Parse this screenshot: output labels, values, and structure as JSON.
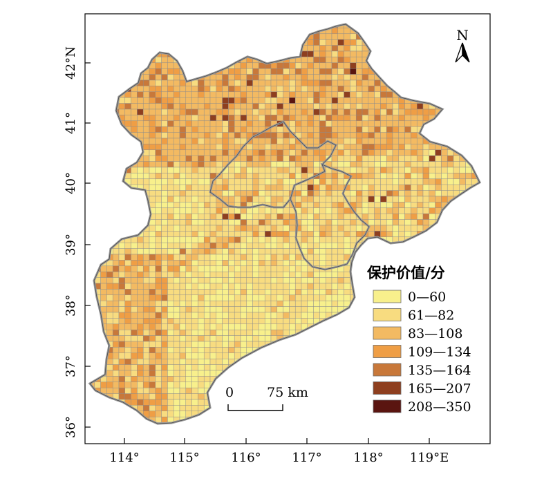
{
  "map": {
    "north_label": "N",
    "latitude_ticks": [
      "42°N",
      "41°",
      "40°",
      "39°",
      "38°",
      "37°",
      "36°"
    ],
    "longitude_ticks": [
      "114°",
      "115°",
      "116°",
      "117°",
      "118°",
      "119°E"
    ],
    "scale_bar": {
      "start_label": "0",
      "end_label": "75 km"
    },
    "legend": {
      "title": "保护价值/分",
      "classes": [
        {
          "label": "0—60",
          "color": "#f8f08c"
        },
        {
          "label": "61—82",
          "color": "#f8dc80"
        },
        {
          "label": "83—108",
          "color": "#f3ba62"
        },
        {
          "label": "109—134",
          "color": "#ef9e45"
        },
        {
          "label": "135—164",
          "color": "#c8783a"
        },
        {
          "label": "165—207",
          "color": "#8e3f1f"
        },
        {
          "label": "208—350",
          "color": "#5a1510"
        }
      ]
    },
    "colors": {
      "grid_line": "#8c8c8c",
      "boundary": "#9a9a9a",
      "frame": "#000000"
    }
  }
}
